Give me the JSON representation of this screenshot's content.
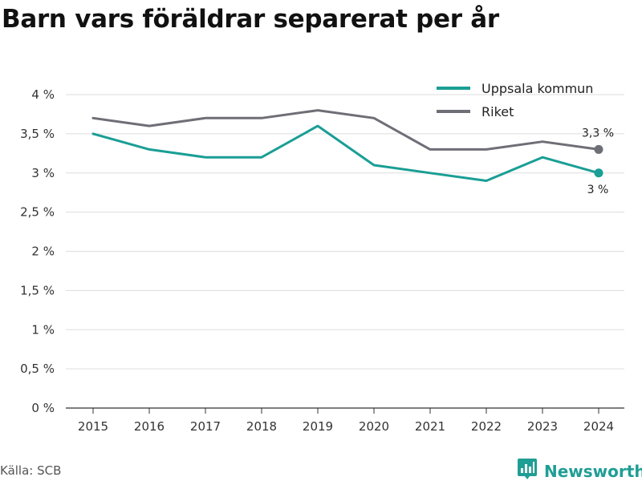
{
  "title": "Barn vars föräldrar separerat per år",
  "source": "Källa: SCB",
  "brand": {
    "name": "Newsworthy",
    "icon": "newsworthy-logo-icon"
  },
  "colors": {
    "uppsala": "#1a9e95",
    "riket": "#6e6e76",
    "grid": "#dddddd",
    "axis": "#333333"
  },
  "chart_data": {
    "type": "line",
    "x": [
      2015,
      2016,
      2017,
      2018,
      2019,
      2020,
      2021,
      2022,
      2023,
      2024
    ],
    "xlabel": "",
    "ylabel": "",
    "ylim": [
      0,
      4
    ],
    "yticks": [
      {
        "value": 0,
        "label": "0 %"
      },
      {
        "value": 0.5,
        "label": "0,5 %"
      },
      {
        "value": 1,
        "label": "1 %"
      },
      {
        "value": 1.5,
        "label": "1,5 %"
      },
      {
        "value": 2,
        "label": "2 %"
      },
      {
        "value": 2.5,
        "label": "2,5 %"
      },
      {
        "value": 3,
        "label": "3 %"
      },
      {
        "value": 3.5,
        "label": "3,5 %"
      },
      {
        "value": 4,
        "label": "4 %"
      }
    ],
    "grid": true,
    "legend": "top-right",
    "series": [
      {
        "name": "Uppsala kommun",
        "color": "#1a9e95",
        "values": [
          3.5,
          3.3,
          3.2,
          3.2,
          3.6,
          3.1,
          3.0,
          2.9,
          3.2,
          3.0
        ],
        "end_label": "3 %"
      },
      {
        "name": "Riket",
        "color": "#6e6e76",
        "values": [
          3.7,
          3.6,
          3.7,
          3.7,
          3.8,
          3.7,
          3.3,
          3.3,
          3.4,
          3.3
        ],
        "end_label": "3,3 %"
      }
    ]
  }
}
